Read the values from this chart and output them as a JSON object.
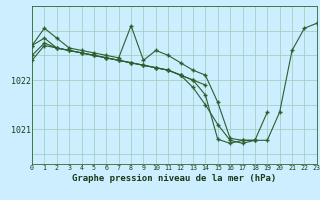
{
  "background_color": "#cceeff",
  "plot_bg_color": "#cceeff",
  "line_color": "#2d5e2d",
  "grid_color": "#99ccbb",
  "xlabel": "Graphe pression niveau de la mer (hPa)",
  "xlabel_fontsize": 6.5,
  "ytick_labels": [
    "1021",
    "1022"
  ],
  "ytick_values": [
    1021.0,
    1022.0
  ],
  "ylim": [
    1020.3,
    1023.5
  ],
  "xlim": [
    0,
    23
  ],
  "xtick_values": [
    0,
    1,
    2,
    3,
    4,
    5,
    6,
    7,
    8,
    9,
    10,
    11,
    12,
    13,
    14,
    15,
    16,
    17,
    18,
    19,
    20,
    21,
    22,
    23
  ],
  "series": [
    [
      1022.7,
      1023.05,
      1022.85,
      1022.65,
      1022.6,
      1022.55,
      1022.5,
      1022.45,
      1023.1,
      1022.4,
      1022.6,
      1022.5,
      1022.35,
      1022.2,
      1022.1,
      1021.55,
      1020.82,
      1020.78,
      1020.78,
      1020.78,
      1021.35,
      1022.6,
      1023.05,
      1023.15
    ],
    [
      1022.7,
      1022.85,
      1022.65,
      1022.6,
      1022.55,
      1022.5,
      1022.45,
      1022.4,
      1022.35,
      1022.3,
      1022.25,
      1022.2,
      1022.1,
      1021.85,
      1021.5,
      1021.1,
      1020.78,
      1020.72,
      1020.78,
      1021.35,
      null,
      null,
      null,
      null
    ],
    [
      1022.5,
      1022.75,
      1022.65,
      1022.6,
      1022.55,
      1022.5,
      1022.45,
      1022.4,
      1022.35,
      1022.3,
      1022.25,
      1022.2,
      1022.1,
      1022.0,
      1021.7,
      1020.8,
      1020.72,
      1020.78,
      1020.78,
      null,
      null,
      null,
      null,
      null
    ],
    [
      1022.4,
      1022.7,
      1022.65,
      1022.6,
      1022.55,
      1022.5,
      1022.45,
      1022.4,
      1022.35,
      1022.3,
      1022.25,
      1022.2,
      1022.1,
      1022.0,
      1021.9,
      null,
      null,
      null,
      null,
      null,
      null,
      null,
      null,
      null
    ]
  ]
}
